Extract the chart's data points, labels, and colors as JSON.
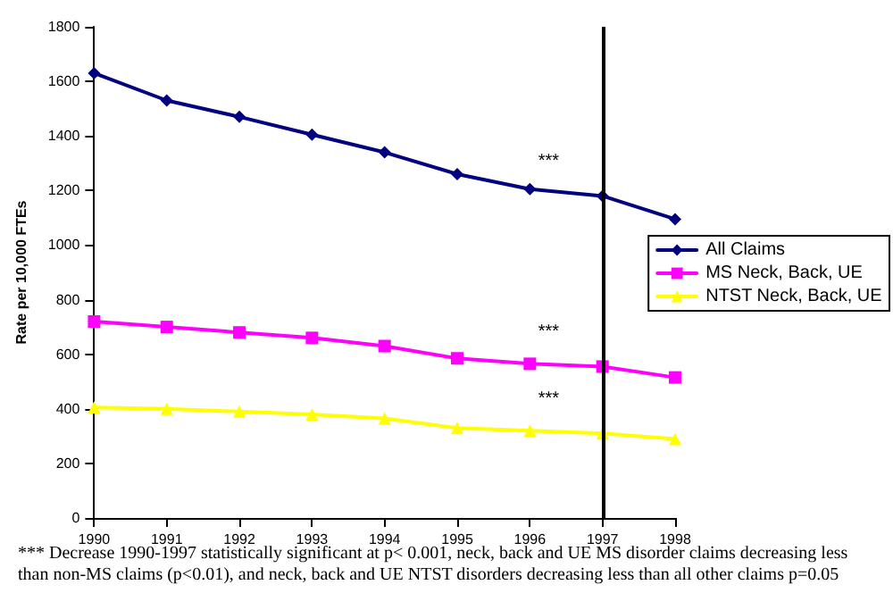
{
  "chart_data": {
    "type": "line",
    "ylabel": "Rate per 10,000 FTEs",
    "x": [
      1990,
      1991,
      1992,
      1993,
      1994,
      1995,
      1996,
      1997,
      1998
    ],
    "xlim": [
      1990,
      1998
    ],
    "xticks": [
      1990,
      1991,
      1992,
      1993,
      1994,
      1995,
      1996,
      1997,
      1998
    ],
    "ylim": [
      0,
      1800
    ],
    "yticks": [
      0,
      200,
      400,
      600,
      800,
      1000,
      1200,
      1400,
      1600,
      1800
    ],
    "series": [
      {
        "name": "All Claims",
        "color": "#000080",
        "marker": "diamond",
        "values": [
          1630,
          1530,
          1470,
          1405,
          1340,
          1260,
          1205,
          1180,
          1095
        ]
      },
      {
        "name": "MS Neck, Back, UE",
        "color": "#ff00ff",
        "marker": "square",
        "values": [
          720,
          700,
          680,
          660,
          630,
          585,
          565,
          555,
          515
        ]
      },
      {
        "name": "NTST Neck, Back, UE",
        "color": "#ffff00",
        "marker": "triangle",
        "values": [
          405,
          400,
          390,
          380,
          365,
          330,
          320,
          310,
          290
        ]
      }
    ],
    "ref_lines": [
      {
        "axis": "x",
        "value": 1997,
        "color": "#000000"
      }
    ],
    "annotations": [
      "***",
      "***",
      "***",
      "*** Decrease 1990-1997 statistically significant at p< 0.001, neck, back and UE MS disorder claims decreasing less than non-MS claims (p<0.01), and neck, back and UE NTST disorders decreasing less than all other claims p=0.05"
    ],
    "grid": false,
    "legend": "right",
    "line_style": "solid"
  }
}
